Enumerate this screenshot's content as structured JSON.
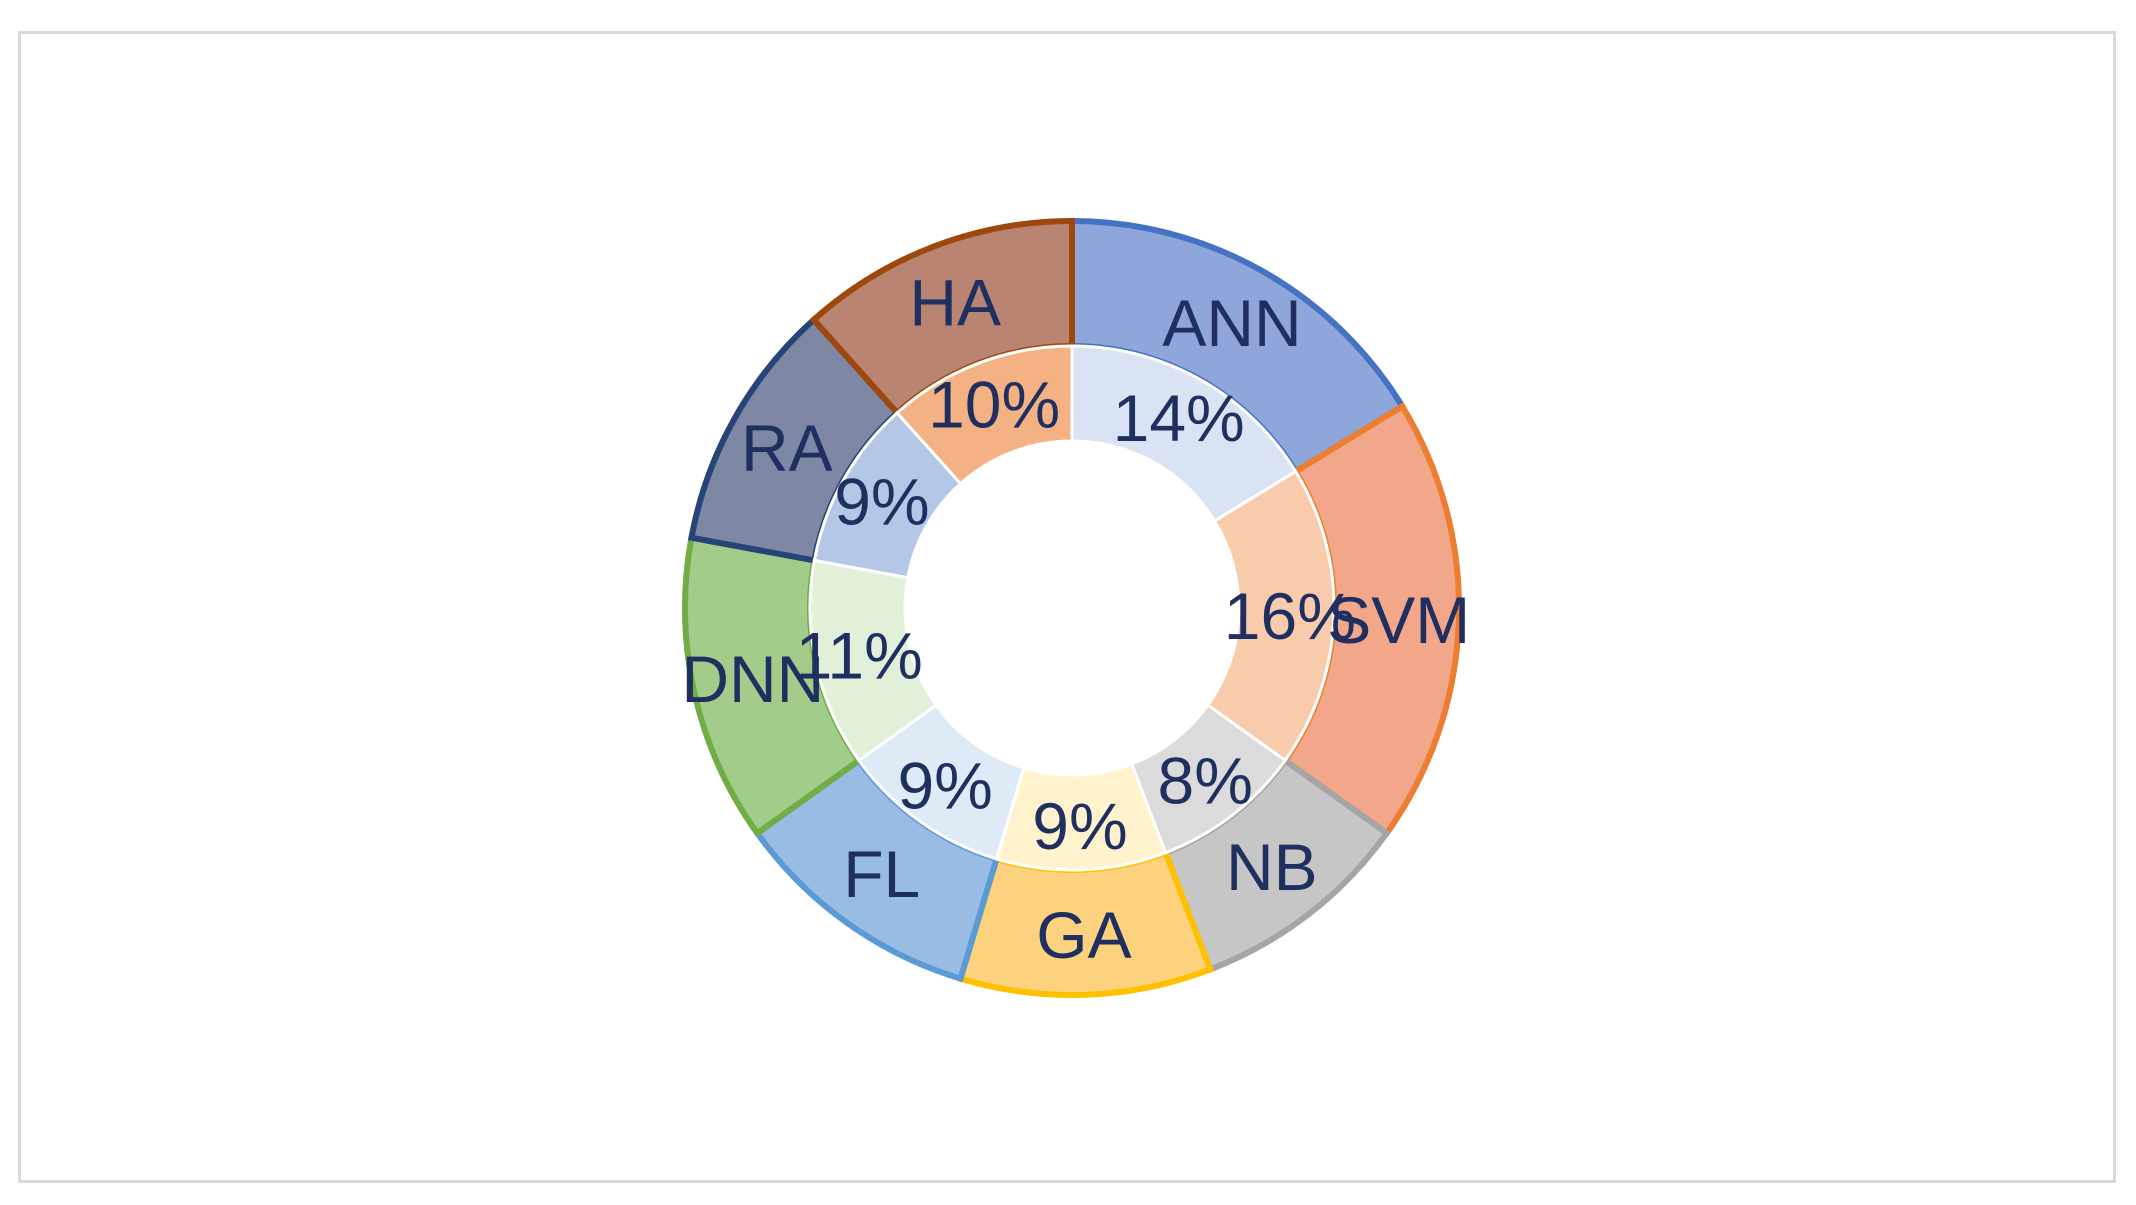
{
  "chart_data": {
    "type": "pie",
    "subtype": "double-doughnut",
    "title": "",
    "categories": [
      "ANN",
      "SVM",
      "NB",
      "GA",
      "FL",
      "DNN",
      "RA",
      "HA"
    ],
    "series": [
      {
        "ring": "outer",
        "labels": [
          "ANN",
          "SVM",
          "NB",
          "GA",
          "FL",
          "DNN",
          "RA",
          "HA"
        ],
        "values": [
          14,
          16,
          8,
          9,
          9,
          11,
          9,
          10
        ]
      },
      {
        "ring": "inner",
        "labels": [
          "14%",
          "16%",
          "8%",
          "9%",
          "9%",
          "11%",
          "9%",
          "10%"
        ],
        "values": [
          14,
          16,
          8,
          9,
          9,
          11,
          9,
          10
        ]
      }
    ],
    "legend": "none",
    "label_color": "#1f2f5f",
    "colors": {
      "outer_fill": [
        "#8fa6da",
        "#f3a78a",
        "#c6c6c6",
        "#fdd27e",
        "#98bce4",
        "#a1cc8a",
        "#7e87a4",
        "#b98472"
      ],
      "outer_stroke": [
        "#4472c4",
        "#ed7d31",
        "#a5a5a5",
        "#ffc000",
        "#5b9bd5",
        "#70ad47",
        "#264478",
        "#9e480e"
      ],
      "inner_fill": [
        "#dae3f3",
        "#f8cbad",
        "#dbdbdb",
        "#fff2cc",
        "#deebf7",
        "#e2f0d9",
        "#b4c7e7",
        "#f4b183"
      ],
      "inner_stroke": [
        "#ffffff",
        "#ffffff",
        "#ffffff",
        "#ffffff",
        "#ffffff",
        "#ffffff",
        "#ffffff",
        "#ffffff"
      ]
    }
  }
}
